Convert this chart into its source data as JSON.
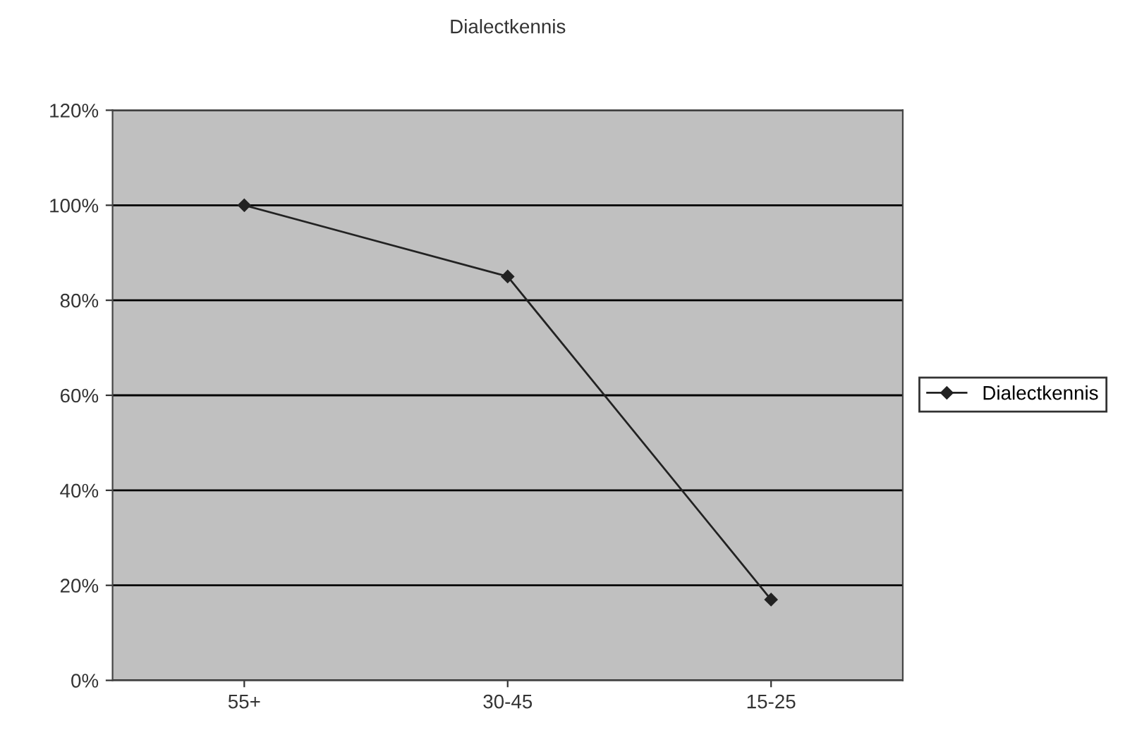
{
  "chart_data": {
    "type": "line",
    "title": "Dialectkennis",
    "categories": [
      "55+",
      "30-45",
      "15-25"
    ],
    "series": [
      {
        "name": "Dialectkennis",
        "color": "#222222",
        "values": [
          100,
          85,
          17
        ]
      }
    ],
    "ylim": [
      0,
      120
    ],
    "yticks": [
      {
        "value": 0,
        "label": "0%"
      },
      {
        "value": 20,
        "label": "20%"
      },
      {
        "value": 40,
        "label": "40%"
      },
      {
        "value": 60,
        "label": "60%"
      },
      {
        "value": 80,
        "label": "80%"
      },
      {
        "value": 100,
        "label": "100%"
      },
      {
        "value": 120,
        "label": "120%"
      }
    ],
    "grid": "y",
    "legend": "right",
    "marker": "diamond",
    "line_style": "solid"
  }
}
